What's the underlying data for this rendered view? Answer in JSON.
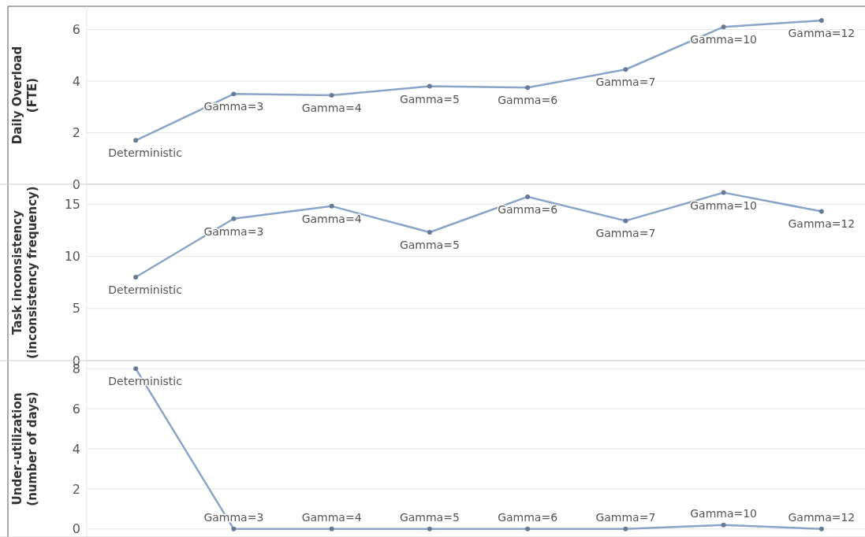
{
  "chart_data": [
    {
      "type": "line",
      "ylabel": "Daily Overload\n(FTE)",
      "categories": [
        "Deterministic",
        "Gamma=3",
        "Gamma=4",
        "Gamma=5",
        "Gamma=6",
        "Gamma=7",
        "Gamma=10",
        "Gamma=12"
      ],
      "series": [
        {
          "color": "#8aa4c8",
          "values": [
            1.7,
            3.5,
            3.45,
            3.8,
            3.75,
            4.45,
            6.1,
            6.35
          ]
        }
      ],
      "ylim": [
        0,
        6.9
      ],
      "yticks": [
        0,
        2,
        4,
        6
      ],
      "grid": "y",
      "marker": "circle",
      "tick_labels": "y"
    },
    {
      "type": "line",
      "ylabel": "Task inconsistency\n(inconsistency frequency)",
      "categories": [
        "Deterministic",
        "Gamma=3",
        "Gamma=4",
        "Gamma=5",
        "Gamma=6",
        "Gamma=7",
        "Gamma=10",
        "Gamma=12"
      ],
      "series": [
        {
          "color": "#8aa4c8",
          "values": [
            8.0,
            13.6,
            14.8,
            12.3,
            15.7,
            13.4,
            16.1,
            14.3
          ]
        }
      ],
      "ylim": [
        0,
        16.9
      ],
      "yticks": [
        0,
        5,
        10,
        15
      ],
      "grid": "y",
      "marker": "circle",
      "tick_labels": "y"
    },
    {
      "type": "line",
      "ylabel": "Under-utilization\n(number of days)",
      "categories": [
        "Deterministic",
        "Gamma=3",
        "Gamma=4",
        "Gamma=5",
        "Gamma=6",
        "Gamma=7",
        "Gamma=10",
        "Gamma=12"
      ],
      "series": [
        {
          "color": "#8aa4c8",
          "values": [
            8.0,
            0,
            0,
            0,
            0,
            0,
            0.2,
            0
          ]
        }
      ],
      "ylim": [
        -0.4,
        8.4
      ],
      "yticks": [
        0,
        2,
        4,
        6,
        8
      ],
      "grid": "y",
      "marker": "circle",
      "tick_labels": "y"
    }
  ]
}
